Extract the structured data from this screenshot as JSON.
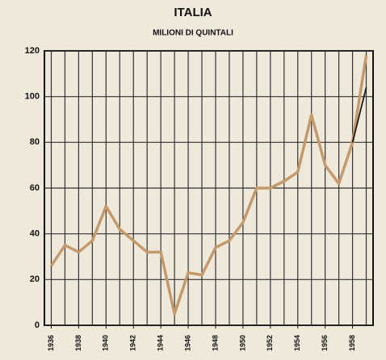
{
  "chart_data": {
    "type": "line",
    "title": "ITALIA",
    "subtitle": "MILIONI DI QUINTALI",
    "x": [
      1936,
      1937,
      1938,
      1939,
      1940,
      1941,
      1942,
      1943,
      1944,
      1945,
      1946,
      1947,
      1948,
      1949,
      1950,
      1951,
      1952,
      1953,
      1954,
      1955,
      1956,
      1957,
      1958,
      1959
    ],
    "series": [
      {
        "color": "#c49a6c",
        "values": [
          26,
          35,
          32,
          37,
          52,
          42,
          37,
          32,
          32,
          5,
          23,
          22,
          34,
          37,
          45,
          60,
          60,
          63,
          67,
          92,
          70,
          62,
          80,
          118
        ]
      },
      {
        "color": "#1a1a1a",
        "values": [
          null,
          null,
          null,
          null,
          null,
          null,
          null,
          null,
          null,
          null,
          null,
          null,
          null,
          null,
          null,
          null,
          null,
          null,
          null,
          null,
          null,
          null,
          80,
          104
        ]
      }
    ],
    "xlim": [
      1935.5,
      1959.5
    ],
    "xticks": [
      1936,
      1938,
      1940,
      1942,
      1944,
      1946,
      1948,
      1950,
      1952,
      1954,
      1956,
      1958
    ],
    "ylim": [
      0,
      120
    ],
    "yticks": [
      0,
      20,
      40,
      60,
      80,
      100,
      120
    ],
    "grid": true
  }
}
